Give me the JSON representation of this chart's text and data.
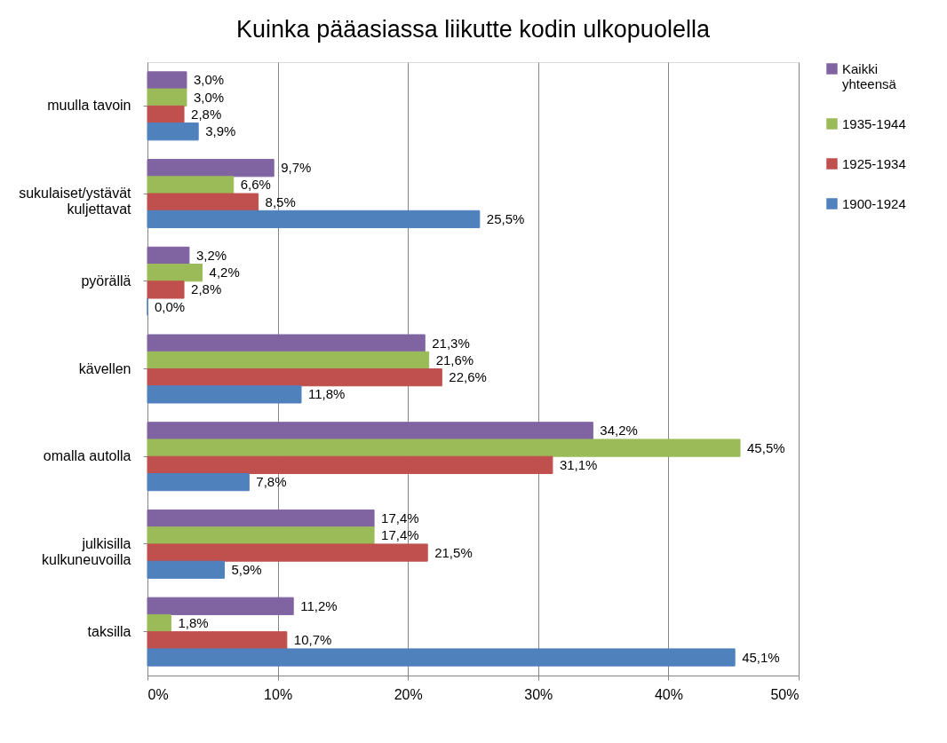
{
  "chart_data": {
    "type": "bar",
    "orientation": "horizontal",
    "title": "Kuinka pääasiassa liikutte kodin ulkopuolella",
    "categories": [
      "muulla tavoin",
      "sukulaiset/ystävät\nkuljettavat",
      "pyörällä",
      "kävellen",
      "omalla autolla",
      "julkisilla\nkulkuneuvoilla",
      "taksilla"
    ],
    "series": [
      {
        "name": "Kaikki\nyhteensä",
        "color": "#8064a2",
        "values": [
          3.0,
          9.7,
          3.2,
          21.3,
          34.2,
          17.4,
          11.2
        ],
        "value_labels": [
          "3,0%",
          "9,7%",
          "3,2%",
          "21,3%",
          "34,2%",
          "17,4%",
          "11,2%"
        ]
      },
      {
        "name": "1935-1944",
        "color": "#9bbb59",
        "values": [
          3.0,
          6.6,
          4.2,
          21.6,
          45.5,
          17.4,
          1.8
        ],
        "value_labels": [
          "3,0%",
          "6,6%",
          "4,2%",
          "21,6%",
          "45,5%",
          "17,4%",
          "1,8%"
        ]
      },
      {
        "name": "1925-1934",
        "color": "#c0504d",
        "values": [
          2.8,
          8.5,
          2.8,
          22.6,
          31.1,
          21.5,
          10.7
        ],
        "value_labels": [
          "2,8%",
          "8,5%",
          "2,8%",
          "22,6%",
          "31,1%",
          "21,5%",
          "10,7%"
        ]
      },
      {
        "name": "1900-1924",
        "color": "#4f81bd",
        "values": [
          3.9,
          25.5,
          0.0,
          11.8,
          7.8,
          5.9,
          45.1
        ],
        "value_labels": [
          "3,9%",
          "25,5%",
          "0,0%",
          "11,8%",
          "7,8%",
          "5,9%",
          "45,1%"
        ]
      }
    ],
    "xlim": [
      0,
      50
    ],
    "xticks": [
      {
        "value": 0,
        "label": "0%"
      },
      {
        "value": 10,
        "label": "10%"
      },
      {
        "value": 20,
        "label": "20%"
      },
      {
        "value": 30,
        "label": "30%"
      },
      {
        "value": 40,
        "label": "40%"
      },
      {
        "value": 50,
        "label": "50%"
      }
    ],
    "grid": "x",
    "legend": "right"
  }
}
